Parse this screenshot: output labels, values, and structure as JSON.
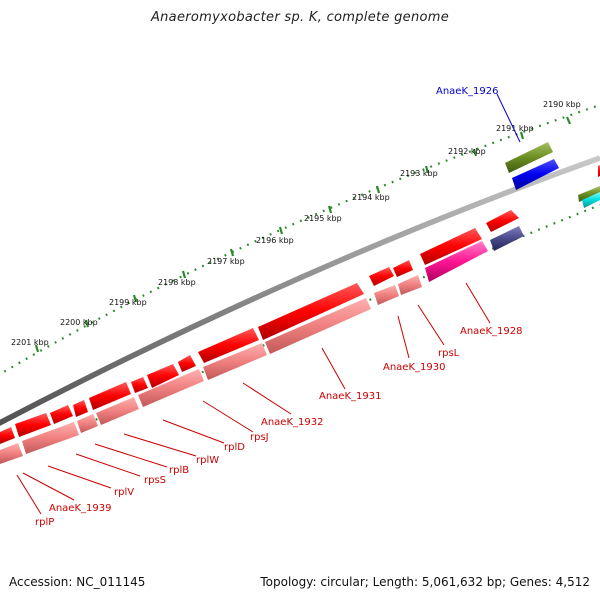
{
  "title": "Anaeromyxobacter sp. K, complete genome",
  "footer": {
    "accession": "Accession: NC_011145",
    "summary": "Topology: circular; Length: 5,061,632 bp; Genes: 4,512"
  },
  "ruler_labels": [
    "2190 kbp",
    "2191 kbp",
    "2192 kbp",
    "2193 kbp",
    "2194 kbp",
    "2195 kbp",
    "2196 kbp",
    "2197 kbp",
    "2198 kbp",
    "2199 kbp",
    "2200 kbp",
    "2201 kbp"
  ],
  "gene_labels": [
    "AnaeK_1926",
    "AnaeK_1928",
    "rpsL",
    "AnaeK_1930",
    "AnaeK_1931",
    "AnaeK_1932",
    "rpsJ",
    "rplD",
    "rplW",
    "rplB",
    "rpsS",
    "rplV",
    "AnaeK_1939",
    "rplP"
  ],
  "colors": {
    "gene_forward": "#ff0000",
    "gene_reverse": "#f08080",
    "label_red": "#cc0000",
    "label_blue": "#0000cc",
    "backbone": "#888888",
    "ruler": "#2a8a2a"
  }
}
